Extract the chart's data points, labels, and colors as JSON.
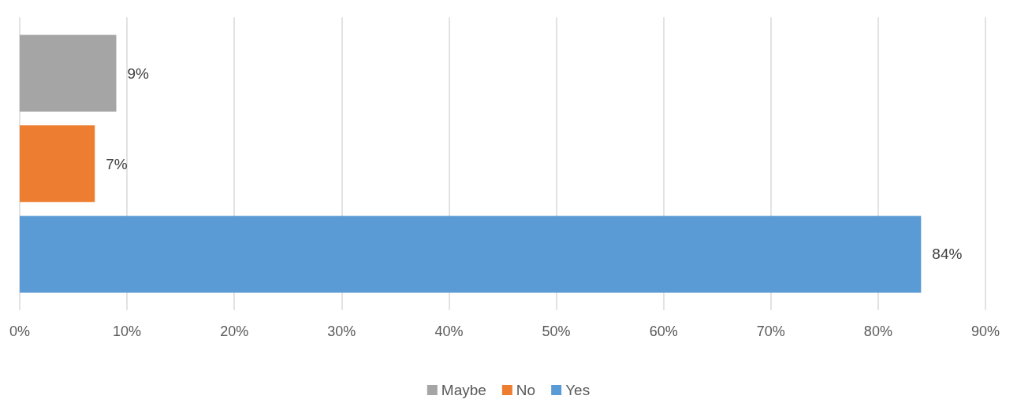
{
  "chart_data": {
    "type": "bar",
    "orientation": "horizontal",
    "categories": [
      null
    ],
    "series": [
      {
        "name": "Maybe",
        "color": "#a5a5a5",
        "values": [
          9
        ],
        "value_labels": [
          "9%"
        ]
      },
      {
        "name": "No",
        "color": "#ed7d31",
        "values": [
          7
        ],
        "value_labels": [
          "7%"
        ]
      },
      {
        "name": "Yes",
        "color": "#5b9bd5",
        "values": [
          84
        ],
        "value_labels": [
          "84%"
        ]
      }
    ],
    "xlim": [
      0,
      90
    ],
    "xticks": [
      {
        "value": 0,
        "label": "0%"
      },
      {
        "value": 10,
        "label": "10%"
      },
      {
        "value": 20,
        "label": "20%"
      },
      {
        "value": 30,
        "label": "30%"
      },
      {
        "value": 40,
        "label": "40%"
      },
      {
        "value": 50,
        "label": "50%"
      },
      {
        "value": 60,
        "label": "60%"
      },
      {
        "value": 70,
        "label": "70%"
      },
      {
        "value": 80,
        "label": "80%"
      },
      {
        "value": 90,
        "label": "90%"
      }
    ],
    "grid": "x",
    "legend": "bottom"
  }
}
